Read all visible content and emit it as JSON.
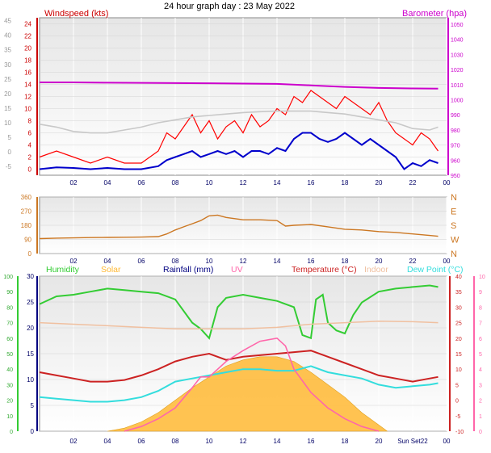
{
  "title": "24 hour graph day : 23 May 2022",
  "colors": {
    "wind": "#ff0000",
    "gust": "#ff0000",
    "avg": "#0000cc",
    "baro": "#cc00cc",
    "gray": "#c8c8c8",
    "dir": "#cc7722",
    "humidity": "#33cc33",
    "solar": "#ffb833",
    "rain": "#000080",
    "uv": "#ff66aa",
    "temp": "#cc2222",
    "indoor": "#f0c0a0",
    "dew": "#33dddd",
    "lavender": "#aaaaee"
  },
  "chart_data": [
    {
      "type": "line",
      "name": "wind-baro",
      "left_label": "Windspeed (kts)",
      "right_label": "Barometer (hpa)",
      "x_ticks": [
        "02",
        "04",
        "06",
        "08",
        "10",
        "12",
        "14",
        "16",
        "18",
        "20",
        "22",
        "00"
      ],
      "y_left_outer": {
        "ticks": [
          -5,
          0,
          5,
          10,
          15,
          20,
          25,
          30,
          35,
          40,
          45
        ],
        "range": [
          -8,
          46
        ]
      },
      "y_left_inner": {
        "ticks": [
          0,
          2,
          4,
          6,
          8,
          10,
          12,
          14,
          16,
          18,
          20,
          22,
          24
        ],
        "range": [
          -1,
          25
        ]
      },
      "y_right": {
        "ticks": [
          950,
          960,
          970,
          980,
          990,
          1000,
          1010,
          1020,
          1030,
          1040,
          1050
        ],
        "range": [
          950,
          1050
        ]
      },
      "series": [
        {
          "name": "Barometer",
          "axis": "right",
          "x": [
            0,
            2,
            4,
            6,
            8,
            10,
            12,
            14,
            16,
            18,
            20,
            22,
            23.5
          ],
          "values": [
            1011.5,
            1011.5,
            1011.3,
            1011.2,
            1011.0,
            1010.9,
            1010.7,
            1010.5,
            1009.5,
            1008.5,
            1007.8,
            1007.5,
            1007.4
          ]
        },
        {
          "name": "Gust",
          "axis": "inner",
          "x": [
            0,
            1,
            2,
            3,
            4,
            5,
            6,
            7,
            7.5,
            8,
            8.5,
            9,
            9.5,
            10,
            10.5,
            11,
            11.5,
            12,
            12.5,
            13,
            13.5,
            14,
            14.5,
            15,
            15.5,
            16,
            16.5,
            17,
            17.5,
            18,
            18.5,
            19,
            19.5,
            20,
            20.5,
            21,
            21.5,
            22,
            22.5,
            23,
            23.5
          ],
          "values": [
            2,
            3,
            2,
            1,
            2,
            1,
            1,
            3,
            6,
            5,
            7,
            9,
            6,
            8,
            5,
            7,
            8,
            6,
            9,
            7,
            8,
            10,
            9,
            12,
            11,
            13,
            12,
            11,
            10,
            12,
            11,
            10,
            9,
            11,
            8,
            6,
            5,
            4,
            6,
            5,
            3
          ]
        },
        {
          "name": "Average",
          "axis": "inner",
          "x": [
            0,
            1,
            2,
            3,
            4,
            5,
            6,
            7,
            7.5,
            8,
            8.5,
            9,
            9.5,
            10,
            10.5,
            11,
            11.5,
            12,
            12.5,
            13,
            13.5,
            14,
            14.5,
            15,
            15.5,
            16,
            16.5,
            17,
            17.5,
            18,
            18.5,
            19,
            19.5,
            20,
            20.5,
            21,
            21.5,
            22,
            22.5,
            23,
            23.5
          ],
          "values": [
            0,
            0.3,
            0.2,
            0,
            0.2,
            0,
            0,
            0.5,
            1.5,
            2,
            2.5,
            3,
            2,
            2.5,
            3,
            2.5,
            3,
            2,
            3,
            3,
            2.5,
            3.5,
            3,
            5,
            6,
            6,
            5,
            4.5,
            5,
            6,
            5,
            4,
            5,
            4,
            3,
            2,
            0,
            1,
            0.5,
            1.5,
            1
          ]
        },
        {
          "name": "Outer",
          "axis": "outer",
          "x": [
            0,
            1,
            2,
            3,
            4,
            5,
            6,
            7,
            8,
            9,
            10,
            11,
            12,
            13,
            14,
            15,
            16,
            17,
            18,
            19,
            20,
            21,
            22,
            23,
            23.5
          ],
          "values": [
            9.5,
            8.5,
            7,
            6.5,
            6.5,
            7.5,
            8.5,
            10,
            11,
            12,
            12.5,
            13,
            13.5,
            13.8,
            14,
            14,
            14,
            13.5,
            13,
            12,
            11,
            10,
            8,
            7.5,
            8.5
          ]
        }
      ]
    },
    {
      "type": "line",
      "name": "wind-direction",
      "x_ticks": [
        "02",
        "04",
        "06",
        "08",
        "10",
        "12",
        "14",
        "16",
        "18",
        "20",
        "22",
        "00"
      ],
      "y_left": {
        "ticks": [
          0,
          90,
          180,
          270,
          360
        ],
        "range": [
          0,
          360
        ]
      },
      "y_right_labels": [
        "N",
        "W",
        "S",
        "E",
        "N"
      ],
      "series": [
        {
          "name": "Direction",
          "x": [
            0,
            1,
            2,
            3,
            4,
            5,
            6,
            7,
            7.5,
            8,
            8.5,
            9,
            9.5,
            10,
            10.5,
            11,
            12,
            13,
            14,
            14.5,
            15,
            16,
            17,
            18,
            19,
            20,
            21,
            22,
            23,
            23.5
          ],
          "values": [
            95,
            98,
            100,
            102,
            103,
            104,
            105,
            108,
            125,
            150,
            170,
            190,
            210,
            240,
            245,
            230,
            215,
            215,
            210,
            175,
            180,
            185,
            170,
            155,
            150,
            140,
            135,
            125,
            115,
            110
          ]
        }
      ]
    },
    {
      "type": "line",
      "name": "temp-humidity-solar",
      "legend": [
        "Humidity",
        "Solar",
        "Rainfall (mm)",
        "UV",
        "Temperature (°C)",
        "Indoor",
        "Dew Point (°C)"
      ],
      "x_ticks": [
        "02",
        "04",
        "06",
        "08",
        "10",
        "12",
        "14",
        "16",
        "18",
        "20",
        "Sun Set22",
        "00"
      ],
      "y_humidity": {
        "ticks": [
          0,
          10,
          20,
          30,
          40,
          50,
          60,
          70,
          80,
          90,
          100
        ],
        "range": [
          0,
          100
        ]
      },
      "y_rain": {
        "ticks": [
          0,
          5,
          10,
          15,
          20,
          25,
          30
        ],
        "range": [
          0,
          30
        ]
      },
      "y_temp": {
        "ticks": [
          -10,
          -5,
          0,
          5,
          10,
          15,
          20,
          25,
          30,
          35,
          40
        ],
        "range": [
          -10,
          40
        ]
      },
      "y_uv": {
        "ticks": [
          0,
          1,
          2,
          3,
          4,
          5,
          6,
          7,
          8,
          9,
          10
        ],
        "range": [
          0,
          10
        ]
      },
      "series": [
        {
          "name": "Humidity",
          "axis": "humidity",
          "x": [
            0,
            1,
            2,
            3,
            4,
            5,
            6,
            7,
            8,
            9,
            9.5,
            10,
            10.5,
            11,
            12,
            13,
            14,
            15,
            15.5,
            16,
            16.3,
            16.7,
            17,
            17.5,
            18,
            18.5,
            19,
            20,
            21,
            22,
            23,
            23.5
          ],
          "values": [
            82,
            87,
            88,
            90,
            92,
            91,
            90,
            89,
            85,
            70,
            66,
            60,
            80,
            86,
            88,
            86,
            84,
            80,
            62,
            60,
            85,
            88,
            70,
            65,
            63,
            75,
            83,
            90,
            92,
            93,
            94,
            93
          ]
        },
        {
          "name": "Temperature",
          "axis": "temp",
          "x": [
            0,
            1,
            2,
            3,
            4,
            5,
            6,
            7,
            8,
            9,
            10,
            11,
            12,
            13,
            14,
            15,
            16,
            17,
            18,
            19,
            20,
            21,
            22,
            23,
            23.5
          ],
          "values": [
            9,
            8,
            7,
            6,
            6,
            6.5,
            8,
            10,
            12.5,
            14,
            15,
            13,
            14,
            14.5,
            15,
            15.5,
            16,
            14,
            12,
            10,
            8,
            7,
            6,
            7,
            7.5
          ]
        },
        {
          "name": "Dew Point",
          "axis": "temp",
          "x": [
            0,
            1,
            2,
            3,
            4,
            5,
            6,
            7,
            8,
            9,
            10,
            11,
            12,
            13,
            14,
            15,
            16,
            17,
            18,
            19,
            20,
            21,
            22,
            23,
            23.5
          ],
          "values": [
            1,
            0.5,
            0,
            -0.5,
            -0.5,
            0,
            1,
            3,
            6,
            7,
            8,
            9,
            10,
            10,
            9.5,
            9.5,
            11,
            9,
            8,
            7,
            5,
            4,
            4.5,
            5,
            5.5
          ]
        },
        {
          "name": "Indoor",
          "axis": "temp",
          "x": [
            0,
            2,
            4,
            6,
            8,
            10,
            12,
            14,
            15,
            16,
            18,
            20,
            22,
            23.5
          ],
          "values": [
            25,
            24.5,
            24,
            23.5,
            23,
            23,
            23,
            23.5,
            24,
            24.5,
            25,
            25.5,
            25.3,
            25
          ]
        },
        {
          "name": "UV",
          "axis": "uv",
          "x": [
            5,
            6,
            7,
            8,
            9,
            9.5,
            10,
            11,
            12,
            13,
            14,
            14.5,
            15,
            16,
            17,
            18,
            19,
            20
          ],
          "values": [
            0,
            0.3,
            0.8,
            1.5,
            2.8,
            3.5,
            3.5,
            4.5,
            5.2,
            5.8,
            6,
            5.5,
            4,
            2.5,
            1.5,
            0.8,
            0.3,
            0
          ]
        },
        {
          "name": "Solar",
          "axis": "humidity",
          "x": [
            4,
            5,
            6,
            7,
            8,
            9,
            10,
            11,
            12,
            13,
            14,
            15,
            16,
            17,
            18,
            19,
            20,
            20.5
          ],
          "values": [
            0,
            2,
            6,
            12,
            20,
            28,
            35,
            42,
            46,
            48,
            48,
            45,
            38,
            30,
            22,
            12,
            4,
            0
          ]
        }
      ]
    }
  ]
}
